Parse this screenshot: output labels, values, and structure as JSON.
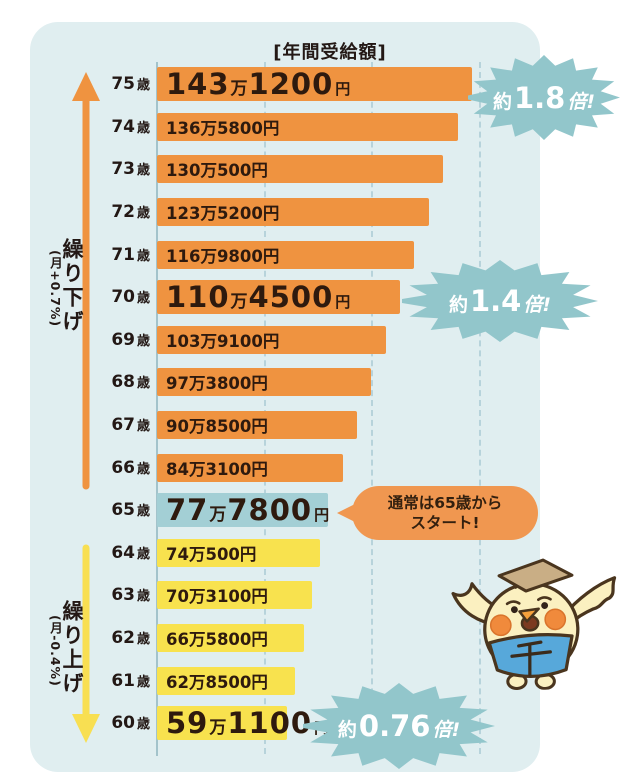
{
  "chart_data": {
    "type": "bar",
    "orientation": "horizontal",
    "title": "[年間受給額]",
    "unit_age": "歳",
    "unit_man": "万",
    "unit_yen": "円",
    "value_axis": {
      "min": 0,
      "max": 1431200,
      "gridlines": "dashed-vertical"
    },
    "rows": [
      {
        "age": "75",
        "man": "143",
        "rest": "1200",
        "value_yen": 1431200,
        "group": "deferred",
        "emphasis": true
      },
      {
        "age": "74",
        "man": "136",
        "rest": "5800",
        "value_yen": 1365800,
        "group": "deferred",
        "emphasis": false
      },
      {
        "age": "73",
        "man": "130",
        "rest": "500",
        "value_yen": 1300500,
        "group": "deferred",
        "emphasis": false
      },
      {
        "age": "72",
        "man": "123",
        "rest": "5200",
        "value_yen": 1235200,
        "group": "deferred",
        "emphasis": false
      },
      {
        "age": "71",
        "man": "116",
        "rest": "9800",
        "value_yen": 1169800,
        "group": "deferred",
        "emphasis": false
      },
      {
        "age": "70",
        "man": "110",
        "rest": "4500",
        "value_yen": 1104500,
        "group": "deferred",
        "emphasis": true
      },
      {
        "age": "69",
        "man": "103",
        "rest": "9100",
        "value_yen": 1039100,
        "group": "deferred",
        "emphasis": false
      },
      {
        "age": "68",
        "man": "97",
        "rest": "3800",
        "value_yen": 973800,
        "group": "deferred",
        "emphasis": false
      },
      {
        "age": "67",
        "man": "90",
        "rest": "8500",
        "value_yen": 908500,
        "group": "deferred",
        "emphasis": false
      },
      {
        "age": "66",
        "man": "84",
        "rest": "3100",
        "value_yen": 843100,
        "group": "deferred",
        "emphasis": false
      },
      {
        "age": "65",
        "man": "77",
        "rest": "7800",
        "value_yen": 777800,
        "group": "standard",
        "emphasis": true
      },
      {
        "age": "64",
        "man": "74",
        "rest": "500",
        "value_yen": 740500,
        "group": "early",
        "emphasis": false
      },
      {
        "age": "63",
        "man": "70",
        "rest": "3100",
        "value_yen": 703100,
        "group": "early",
        "emphasis": false
      },
      {
        "age": "62",
        "man": "66",
        "rest": "5800",
        "value_yen": 665800,
        "group": "early",
        "emphasis": false
      },
      {
        "age": "61",
        "man": "62",
        "rest": "8500",
        "value_yen": 628500,
        "group": "early",
        "emphasis": false
      },
      {
        "age": "60",
        "man": "59",
        "rest": "1100",
        "value_yen": 591100,
        "group": "early",
        "emphasis": true
      }
    ]
  },
  "sides": {
    "deferred": {
      "title": "繰り下げ",
      "rate": "(月+0.7%)",
      "arrow": "up"
    },
    "early": {
      "title": "繰り上げ",
      "rate": "(月-0.4%)",
      "arrow": "down"
    }
  },
  "annotations": {
    "bursts": [
      {
        "prefix": "約",
        "number": "1.8",
        "suffix": "倍!",
        "target_age": "75"
      },
      {
        "prefix": "約",
        "number": "1.4",
        "suffix": "倍!",
        "target_age": "70"
      },
      {
        "prefix": "約",
        "number": "0.76",
        "suffix": "倍!",
        "target_age": "60"
      }
    ],
    "start_note": {
      "line1": "通常は65歳から",
      "line2": "スタート!",
      "target_age": "65"
    }
  },
  "colors": {
    "panel_bg": "#E0EEF0",
    "deferred_bar": "#EF9340",
    "early_bar": "#F8E24E",
    "standard_bar": "#A3CFD5",
    "burst": "#92C6CB",
    "burst_text": "#FFFFFF",
    "bubble": "#F09750",
    "grid": "#AECDD6",
    "axis": "#A3C3CB",
    "text_dark": "#231815",
    "deferred_arrow": "#EF9340",
    "early_arrow": "#F8DF52"
  }
}
